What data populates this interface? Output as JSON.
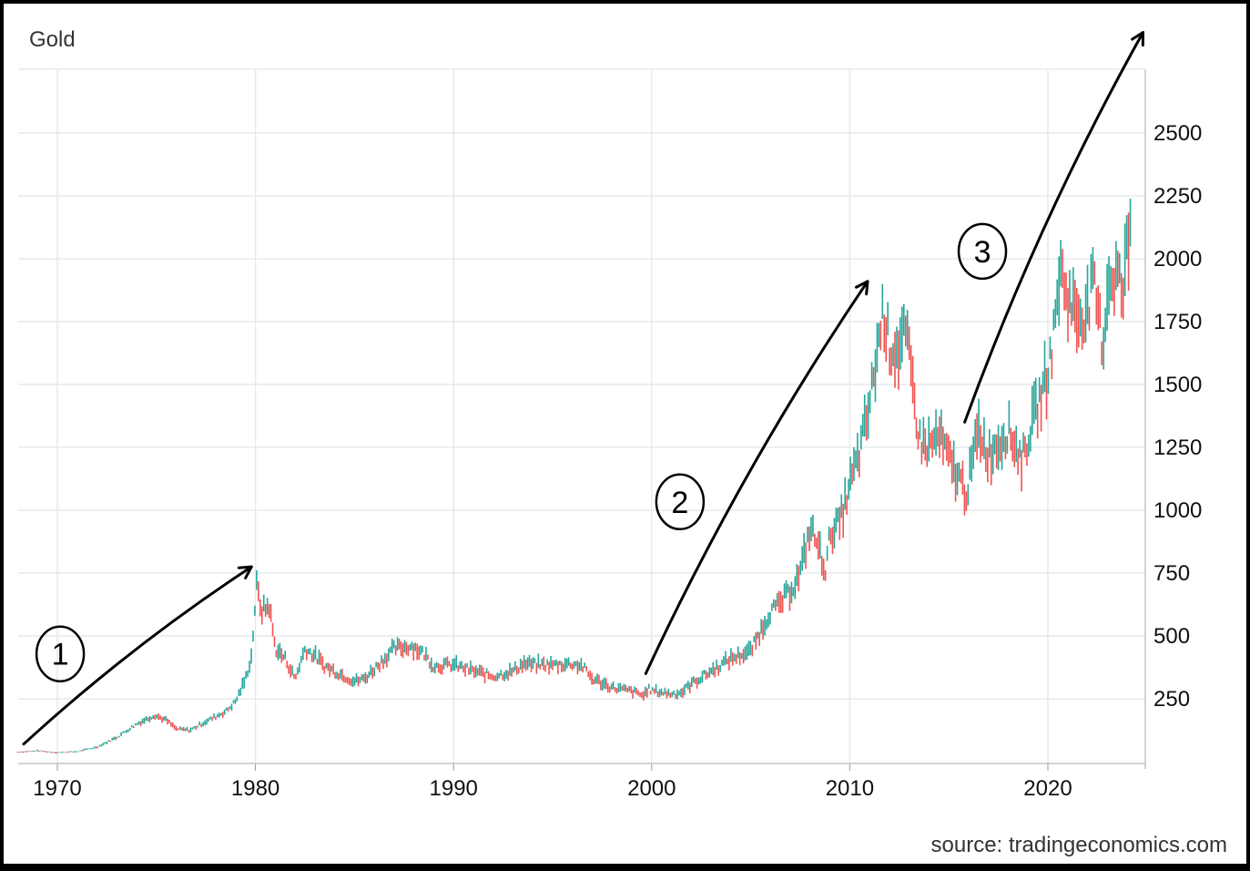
{
  "chart_data": {
    "type": "line",
    "title": "Gold",
    "source": "source: tradingeconomics.com",
    "xlabel": "",
    "ylabel": "",
    "x_ticks": [
      "1970",
      "1980",
      "1990",
      "2000",
      "2010",
      "2020"
    ],
    "y_ticks": [
      "250",
      "500",
      "750",
      "1000",
      "1250",
      "1500",
      "1750",
      "2000",
      "2250",
      "2500"
    ],
    "xlim": [
      1968,
      2025
    ],
    "ylim": [
      0,
      2800
    ],
    "grid": true,
    "colors": {
      "up": "#26a69a",
      "down": "#ef5350",
      "grid": "#e6eaee",
      "annotation": "#000000"
    },
    "series": [
      {
        "x": [
          1968.0,
          1969.0,
          1970.0,
          1971.0,
          1972.0,
          1973.0,
          1974.0,
          1974.9,
          1975.5,
          1976.0,
          1976.7,
          1977.5,
          1978.5,
          1979.0,
          1979.5,
          1979.8,
          1980.05,
          1980.3,
          1980.7,
          1981.0,
          1981.5,
          1982.0,
          1982.5,
          1983.0,
          1983.5,
          1984.0,
          1985.0,
          1985.5,
          1986.0,
          1987.0,
          1987.9,
          1988.5,
          1989.0,
          1990.0,
          1991.0,
          1992.0,
          1993.0,
          1993.5,
          1994.0,
          1995.0,
          1996.0,
          1996.5,
          1997.0,
          1998.0,
          1999.0,
          1999.6,
          1999.8,
          2000.0,
          2001.0,
          2001.5,
          2002.0,
          2003.0,
          2004.0,
          2005.0,
          2006.0,
          2006.4,
          2007.0,
          2007.5,
          2008.0,
          2008.3,
          2008.8,
          2009.0,
          2009.5,
          2010.0,
          2010.5,
          2011.0,
          2011.5,
          2011.7,
          2012.0,
          2012.5,
          2012.8,
          2013.0,
          2013.3,
          2013.5,
          2014.0,
          2014.5,
          2015.0,
          2015.5,
          2015.9,
          2016.5,
          2017.0,
          2017.5,
          2018.0,
          2018.7,
          2019.0,
          2019.5,
          2020.0,
          2020.3,
          2020.6,
          2021.0,
          2021.5,
          2022.0,
          2022.3,
          2022.8,
          2023.0,
          2023.5,
          2023.8,
          2024.0,
          2024.2
        ],
        "y": [
          38,
          43,
          36,
          40,
          58,
          97,
          150,
          185,
          165,
          130,
          125,
          160,
          200,
          240,
          330,
          420,
          700,
          600,
          620,
          450,
          410,
          330,
          450,
          420,
          380,
          360,
          320,
          330,
          370,
          450,
          460,
          430,
          380,
          385,
          360,
          340,
          360,
          390,
          385,
          385,
          390,
          380,
          330,
          295,
          280,
          262,
          290,
          282,
          270,
          275,
          310,
          360,
          410,
          440,
          600,
          620,
          680,
          750,
          930,
          880,
          760,
          910,
          950,
          1100,
          1230,
          1420,
          1700,
          1800,
          1650,
          1640,
          1700,
          1600,
          1420,
          1280,
          1250,
          1300,
          1200,
          1130,
          1070,
          1320,
          1220,
          1270,
          1320,
          1200,
          1290,
          1420,
          1550,
          1700,
          1960,
          1850,
          1770,
          1800,
          1900,
          1650,
          1900,
          1950,
          1850,
          2050,
          2170
        ]
      }
    ],
    "annotations": [
      {
        "label": "1",
        "from_year": 1968.3,
        "to_year": 1979.8,
        "from_value": 70,
        "to_value": 775
      },
      {
        "label": "2",
        "from_year": 1999.7,
        "to_year": 2010.9,
        "from_value": 350,
        "to_value": 1910
      },
      {
        "label": "3",
        "from_year": 2015.8,
        "to_year": 2024.8,
        "from_value": 1350,
        "to_value": 2900
      }
    ]
  }
}
